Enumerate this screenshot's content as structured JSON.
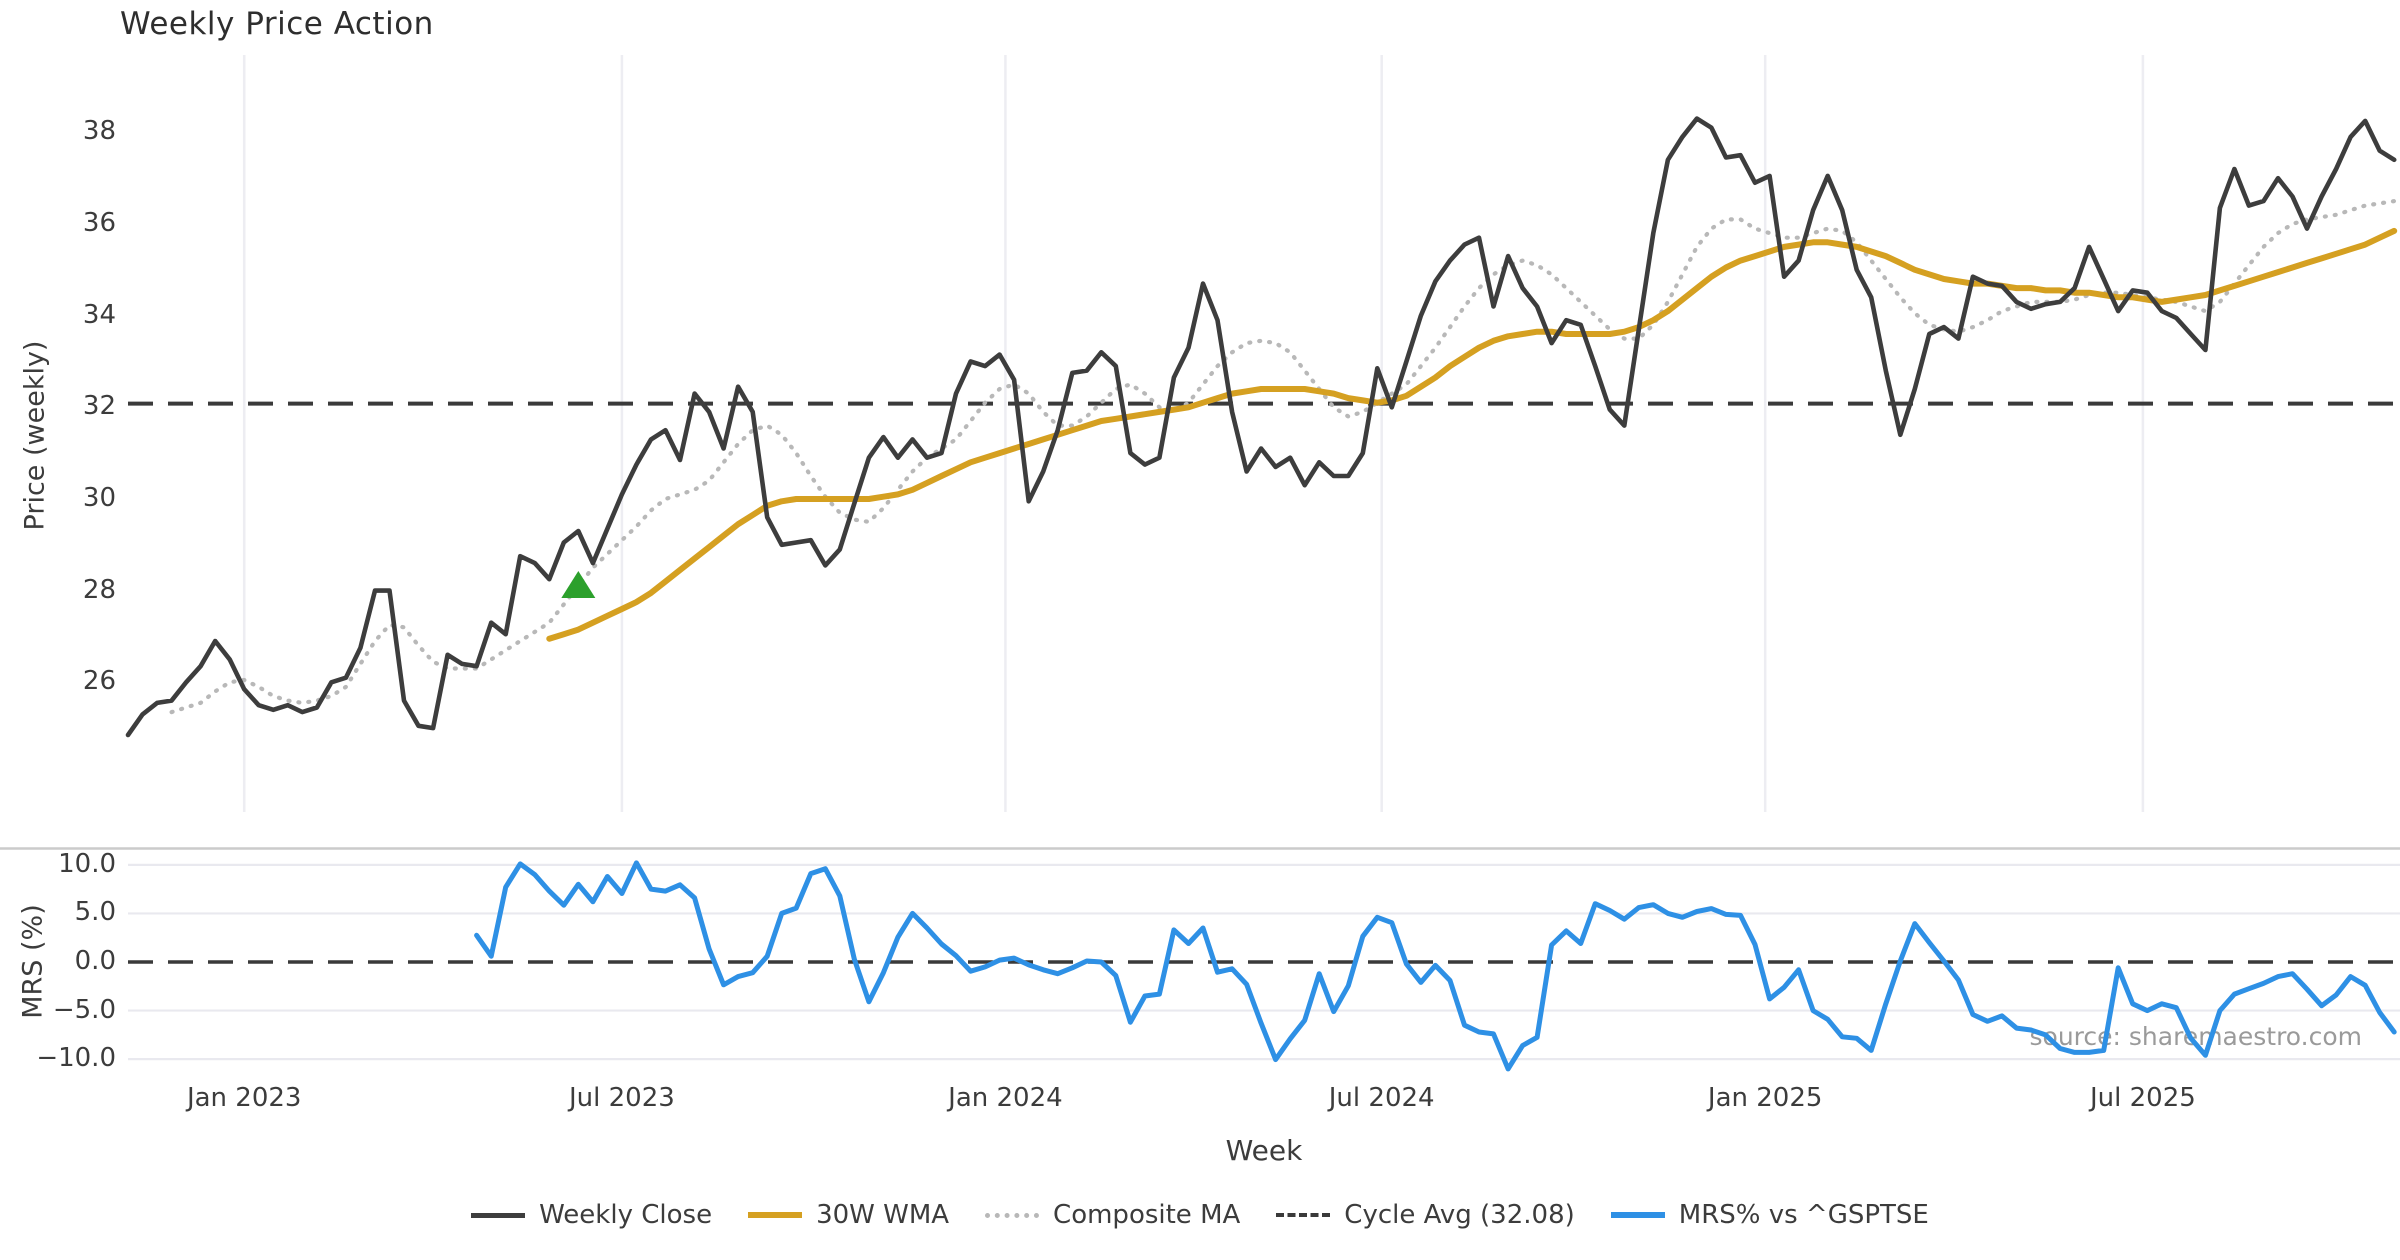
{
  "title": "Weekly Price Action",
  "xlabel": "Week",
  "source_note": "source: sharemaestro.com",
  "colors": {
    "weekly_close": "#3d3d3d",
    "wma": "#d5a021",
    "composite": "#b8b8b8",
    "cycle_avg_dash": "#3a3a3a",
    "mrs_blue": "#2e90e5",
    "marker_green": "#2ca02c",
    "grid": "#ededf2",
    "panel_separator": "#cbcbcb",
    "text": "#3c3c3c",
    "source_text": "#9a9a9a"
  },
  "legend": [
    {
      "label": "Weekly Close",
      "style": "solid",
      "color": "#3d3d3d",
      "weight": 5
    },
    {
      "label": "30W WMA",
      "style": "solid",
      "color": "#d5a021",
      "weight": 6
    },
    {
      "label": "Composite MA",
      "style": "dotted",
      "color": "#b8b8b8",
      "weight": 5
    },
    {
      "label": "Cycle Avg (32.08)",
      "style": "dashed",
      "color": "#3a3a3a",
      "weight": 4
    },
    {
      "label": "MRS% vs ^GSPTSE",
      "style": "solid",
      "color": "#2e90e5",
      "weight": 6
    }
  ],
  "chart_data": {
    "type": "line",
    "x_unit": "week_index_from_Nov_2022",
    "xlabel": "Week",
    "xticks": [
      {
        "label": "Jan 2023",
        "week": 8
      },
      {
        "label": "Jul 2023",
        "week": 34
      },
      {
        "label": "Jan 2024",
        "week": 60.4
      },
      {
        "label": "Jul 2024",
        "week": 86.3
      },
      {
        "label": "Jan 2025",
        "week": 112.7
      },
      {
        "label": "Jul 2025",
        "week": 138.7
      }
    ],
    "xlim": [
      0,
      156.5
    ],
    "grid": {
      "top_panel": "vertical-only",
      "bottom_panel": "horizontal-only"
    },
    "legend_position": "bottom-center",
    "panels": [
      {
        "name": "price",
        "ylabel": "Price (weekly)",
        "ylim": [
          23.4,
          39.7
        ],
        "yticks": [
          38,
          36,
          34,
          32,
          30,
          28,
          26
        ],
        "cycle_avg": 32.08,
        "marker": {
          "type": "triangle-up",
          "week": 31,
          "value": 28.1,
          "color": "#2ca02c"
        },
        "series": [
          {
            "name": "Weekly Close",
            "start_week": 0,
            "values": [
              24.85,
              25.3,
              25.55,
              25.6,
              26.0,
              26.35,
              26.9,
              26.5,
              25.85,
              25.5,
              25.4,
              25.5,
              25.35,
              25.45,
              26.0,
              26.1,
              26.75,
              28.0,
              28.0,
              25.6,
              25.05,
              25.0,
              26.6,
              26.4,
              26.35,
              27.3,
              27.05,
              28.75,
              28.6,
              28.25,
              29.05,
              29.3,
              28.6,
              29.35,
              30.1,
              30.75,
              31.3,
              31.5,
              30.85,
              32.3,
              31.9,
              31.1,
              32.45,
              31.9,
              29.6,
              29.0,
              29.05,
              29.1,
              28.55,
              28.9,
              29.9,
              30.9,
              31.35,
              30.9,
              31.3,
              30.9,
              31.0,
              32.3,
              33.0,
              32.9,
              33.15,
              32.6,
              29.95,
              30.6,
              31.5,
              32.75,
              32.8,
              33.2,
              32.9,
              31.0,
              30.75,
              30.9,
              32.65,
              33.3,
              34.7,
              33.9,
              31.9,
              30.6,
              31.1,
              30.7,
              30.9,
              30.3,
              30.8,
              30.5,
              30.5,
              31.0,
              32.85,
              32.0,
              33.0,
              34.0,
              34.75,
              35.2,
              35.55,
              35.7,
              34.2,
              35.3,
              34.6,
              34.2,
              33.4,
              33.9,
              33.8,
              32.9,
              31.95,
              31.6,
              33.7,
              35.8,
              37.4,
              37.9,
              38.3,
              38.1,
              37.45,
              37.5,
              36.9,
              37.05,
              34.85,
              35.2,
              36.3,
              37.05,
              36.3,
              35.0,
              34.4,
              32.8,
              31.4,
              32.4,
              33.6,
              33.75,
              33.5,
              34.85,
              34.7,
              34.65,
              34.3,
              34.15,
              34.25,
              34.3,
              34.6,
              35.5,
              34.8,
              34.1,
              34.55,
              34.5,
              34.1,
              33.95,
              33.6,
              33.25,
              36.35,
              37.2,
              36.4,
              36.5,
              37.0,
              36.6,
              35.9,
              36.6,
              37.2,
              37.9,
              38.25,
              37.6,
              37.4
            ]
          },
          {
            "name": "30W WMA",
            "start_week": 29,
            "values": [
              26.95,
              27.05,
              27.15,
              27.3,
              27.45,
              27.6,
              27.75,
              27.95,
              28.2,
              28.45,
              28.7,
              28.95,
              29.2,
              29.45,
              29.65,
              29.85,
              29.95,
              30.0,
              30.0,
              30.0,
              30.0,
              30.0,
              30.0,
              30.05,
              30.1,
              30.2,
              30.35,
              30.5,
              30.65,
              30.8,
              30.9,
              31.0,
              31.1,
              31.2,
              31.3,
              31.4,
              31.5,
              31.6,
              31.7,
              31.75,
              31.8,
              31.85,
              31.9,
              31.95,
              32.0,
              32.1,
              32.2,
              32.3,
              32.35,
              32.4,
              32.4,
              32.4,
              32.4,
              32.35,
              32.3,
              32.2,
              32.15,
              32.1,
              32.15,
              32.25,
              32.45,
              32.65,
              32.9,
              33.1,
              33.3,
              33.45,
              33.55,
              33.6,
              33.65,
              33.65,
              33.6,
              33.6,
              33.6,
              33.6,
              33.65,
              33.75,
              33.9,
              34.1,
              34.35,
              34.6,
              34.85,
              35.05,
              35.2,
              35.3,
              35.4,
              35.5,
              35.55,
              35.6,
              35.6,
              35.55,
              35.5,
              35.4,
              35.3,
              35.15,
              35.0,
              34.9,
              34.8,
              34.75,
              34.7,
              34.7,
              34.65,
              34.6,
              34.6,
              34.55,
              34.55,
              34.5,
              34.5,
              34.45,
              34.4,
              34.4,
              34.35,
              34.3,
              34.35,
              34.4,
              34.45,
              34.55,
              34.65,
              34.75,
              34.85,
              34.95,
              35.05,
              35.15,
              35.25,
              35.35,
              35.45,
              35.55,
              35.7,
              35.85
            ]
          },
          {
            "name": "Composite MA",
            "start_week": 3,
            "values": [
              25.35,
              25.45,
              25.55,
              25.8,
              26.0,
              26.05,
              25.9,
              25.7,
              25.6,
              25.55,
              25.6,
              25.7,
              25.9,
              26.4,
              26.9,
              27.25,
              27.2,
              26.8,
              26.45,
              26.3,
              26.3,
              26.3,
              26.5,
              26.7,
              26.9,
              27.1,
              27.3,
              27.7,
              28.1,
              28.5,
              28.8,
              29.1,
              29.4,
              29.75,
              30.0,
              30.1,
              30.2,
              30.4,
              30.8,
              31.2,
              31.5,
              31.6,
              31.4,
              31.0,
              30.5,
              30.05,
              29.7,
              29.55,
              29.5,
              29.8,
              30.2,
              30.6,
              30.9,
              31.1,
              31.3,
              31.7,
              32.1,
              32.4,
              32.5,
              32.3,
              31.9,
              31.6,
              31.6,
              31.8,
              32.1,
              32.4,
              32.5,
              32.3,
              32.0,
              31.9,
              32.1,
              32.5,
              32.9,
              33.2,
              33.4,
              33.45,
              33.4,
              33.2,
              32.8,
              32.4,
              32.0,
              31.8,
              31.9,
              32.1,
              32.3,
              32.5,
              32.9,
              33.3,
              33.75,
              34.2,
              34.6,
              34.9,
              35.1,
              35.2,
              35.1,
              34.9,
              34.6,
              34.3,
              34.0,
              33.7,
              33.5,
              33.5,
              33.8,
              34.3,
              34.9,
              35.5,
              35.9,
              36.1,
              36.1,
              35.9,
              35.8,
              35.7,
              35.7,
              35.8,
              35.9,
              35.85,
              35.6,
              35.2,
              34.8,
              34.4,
              34.05,
              33.8,
              33.7,
              33.65,
              33.75,
              33.9,
              34.1,
              34.2,
              34.3,
              34.3,
              34.3,
              34.35,
              34.45,
              34.5,
              34.5,
              34.45,
              34.4,
              34.35,
              34.3,
              34.2,
              34.1,
              34.3,
              34.7,
              35.1,
              35.5,
              35.8,
              36.0,
              36.1,
              36.15,
              36.2,
              36.3,
              36.4,
              36.45,
              36.5
            ]
          }
        ]
      },
      {
        "name": "mrs",
        "ylabel": "MRS (%)",
        "ylim": [
          -11.6,
          11.6
        ],
        "yticks": [
          10,
          5,
          0,
          -5,
          -10
        ],
        "ytick_labels": [
          "10.0",
          "5.0",
          "0.0",
          "−5.0",
          "−10.0"
        ],
        "zero_line_dashed": true,
        "series": [
          {
            "name": "MRS% vs ^GSPTSE",
            "start_week": 24,
            "values": [
              2.75,
              0.6,
              7.7,
              10.1,
              9.0,
              7.3,
              5.85,
              8.0,
              6.2,
              8.8,
              7.05,
              10.2,
              7.5,
              7.3,
              7.95,
              6.6,
              1.35,
              -2.35,
              -1.5,
              -1.1,
              0.6,
              5.0,
              5.55,
              9.1,
              9.6,
              6.8,
              0.3,
              -4.1,
              -1.1,
              2.55,
              5.0,
              3.5,
              1.85,
              0.65,
              -0.95,
              -0.5,
              0.2,
              0.4,
              -0.3,
              -0.8,
              -1.2,
              -0.6,
              0.1,
              0.0,
              -1.4,
              -6.2,
              -3.5,
              -3.3,
              3.3,
              1.9,
              3.5,
              -1.05,
              -0.7,
              -2.3,
              -6.3,
              -10.05,
              -7.9,
              -6.0,
              -1.2,
              -5.1,
              -2.45,
              2.65,
              4.6,
              4.05,
              -0.2,
              -2.1,
              -0.35,
              -1.9,
              -6.5,
              -7.2,
              -7.4,
              -11.0,
              -8.6,
              -7.75,
              1.75,
              3.2,
              1.9,
              6.0,
              5.3,
              4.4,
              5.6,
              5.9,
              5.0,
              4.6,
              5.2,
              5.5,
              4.9,
              4.8,
              1.8,
              -3.8,
              -2.6,
              -0.8,
              -5.0,
              -5.9,
              -7.7,
              -7.85,
              -9.1,
              -4.3,
              0.1,
              3.95,
              2.0,
              0.1,
              -1.85,
              -5.4,
              -6.1,
              -5.55,
              -6.8,
              -7.0,
              -7.5,
              -8.9,
              -9.3,
              -9.3,
              -9.1,
              -0.6,
              -4.3,
              -5.0,
              -4.3,
              -4.7,
              -7.85,
              -9.6,
              -5.0,
              -3.3,
              -2.75,
              -2.2,
              -1.5,
              -1.2,
              -2.8,
              -4.5,
              -3.4,
              -1.5,
              -2.4,
              -5.2,
              -7.2
            ]
          }
        ]
      }
    ]
  }
}
